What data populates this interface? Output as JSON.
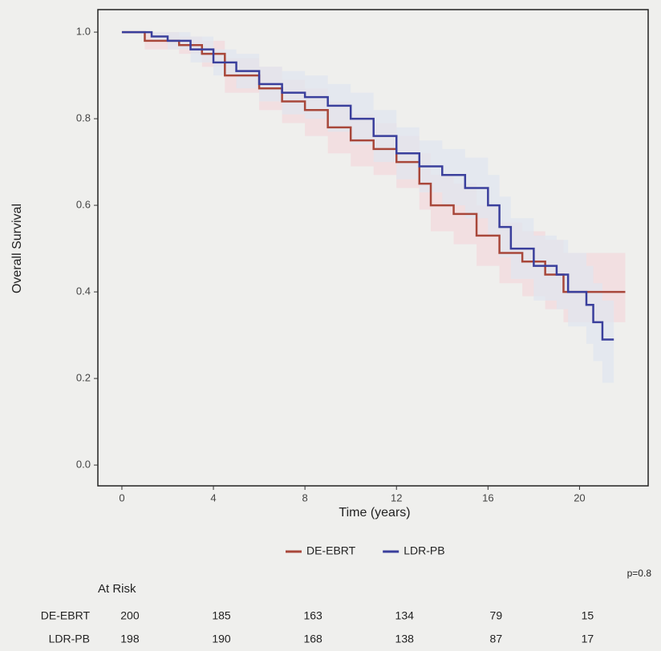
{
  "chart_data": {
    "type": "step",
    "y_label": "Overall Survival",
    "x_label": "Time (years)",
    "xlim": [
      -1.05,
      23
    ],
    "ylim": [
      -0.048,
      1.052
    ],
    "xticks": [
      0,
      4,
      8,
      12,
      16,
      20
    ],
    "yticks": [
      {
        "value": 0,
        "label": "0.0"
      },
      0.2,
      0.4,
      0.6,
      0.8,
      {
        "value": 1,
        "label": "1.0"
      }
    ],
    "legend": "bottom",
    "series": [
      {
        "name": "DE-EBRT",
        "color": "#a8473a",
        "band_color": "#f3d9dc",
        "x": [
          0,
          1,
          2.5,
          3.5,
          4.5,
          6,
          7,
          8,
          9,
          10,
          11,
          12,
          13,
          13.5,
          14.5,
          15.5,
          16.5,
          17.5,
          18.5,
          19.3,
          22
        ],
        "values": [
          1.0,
          0.98,
          0.97,
          0.95,
          0.9,
          0.87,
          0.84,
          0.82,
          0.78,
          0.75,
          0.73,
          0.7,
          0.65,
          0.6,
          0.58,
          0.53,
          0.49,
          0.47,
          0.44,
          0.4,
          0.4
        ],
        "ci_lower": [
          1.0,
          0.96,
          0.95,
          0.92,
          0.86,
          0.82,
          0.79,
          0.76,
          0.72,
          0.69,
          0.67,
          0.64,
          0.59,
          0.54,
          0.51,
          0.46,
          0.42,
          0.39,
          0.36,
          0.33,
          0.33
        ],
        "ci_upper": [
          1.0,
          1.0,
          0.99,
          0.98,
          0.94,
          0.92,
          0.89,
          0.87,
          0.84,
          0.81,
          0.79,
          0.76,
          0.72,
          0.67,
          0.65,
          0.6,
          0.56,
          0.54,
          0.52,
          0.49,
          0.49
        ]
      },
      {
        "name": "LDR-PB",
        "color": "#3a3f9c",
        "band_color": "#dfe6f0",
        "x": [
          0,
          1.3,
          2,
          3,
          4,
          5,
          6,
          7,
          8,
          9,
          10,
          11,
          12,
          13,
          14,
          15,
          16,
          16.5,
          17,
          18,
          19,
          19.5,
          20.3,
          20.6,
          21,
          21.5
        ],
        "values": [
          1.0,
          0.99,
          0.98,
          0.96,
          0.93,
          0.91,
          0.88,
          0.86,
          0.85,
          0.83,
          0.8,
          0.76,
          0.72,
          0.69,
          0.67,
          0.64,
          0.6,
          0.55,
          0.5,
          0.46,
          0.44,
          0.4,
          0.37,
          0.33,
          0.29,
          0.29
        ],
        "ci_lower": [
          1.0,
          0.98,
          0.96,
          0.93,
          0.9,
          0.87,
          0.84,
          0.81,
          0.8,
          0.77,
          0.74,
          0.7,
          0.66,
          0.63,
          0.6,
          0.57,
          0.53,
          0.48,
          0.43,
          0.38,
          0.36,
          0.32,
          0.28,
          0.24,
          0.19,
          0.19
        ],
        "ci_upper": [
          1.0,
          1.0,
          1.0,
          0.99,
          0.96,
          0.95,
          0.92,
          0.91,
          0.9,
          0.88,
          0.86,
          0.82,
          0.78,
          0.75,
          0.73,
          0.71,
          0.67,
          0.62,
          0.57,
          0.53,
          0.52,
          0.49,
          0.46,
          0.42,
          0.38,
          0.38
        ]
      }
    ],
    "p_value": "p=0.8",
    "risk_table": {
      "title": "At Risk",
      "rows": [
        {
          "label": "DE-EBRT",
          "values": [
            200,
            185,
            163,
            134,
            79,
            15
          ]
        },
        {
          "label": "LDR-PB",
          "values": [
            198,
            190,
            168,
            138,
            87,
            17
          ]
        }
      ]
    }
  }
}
